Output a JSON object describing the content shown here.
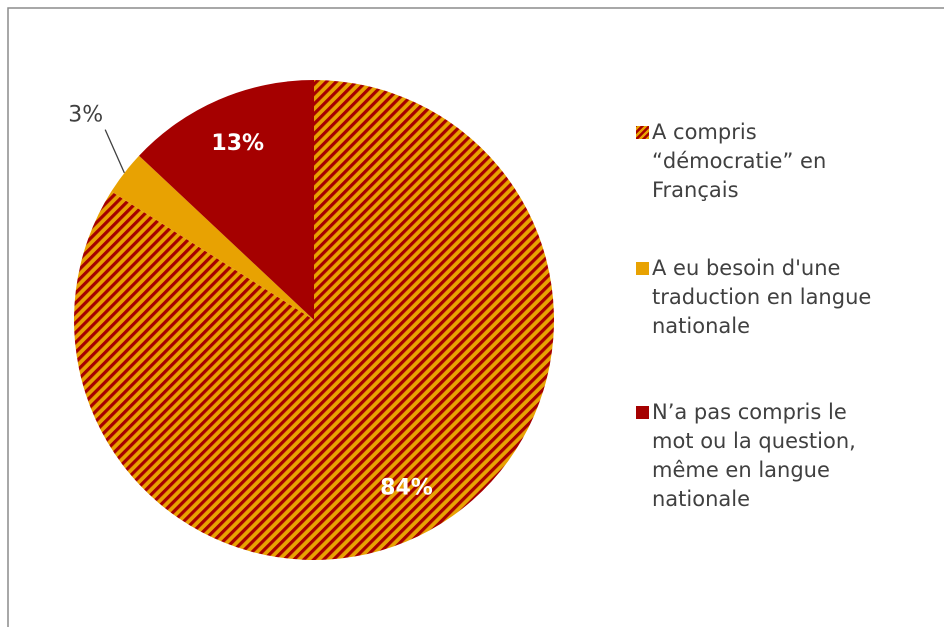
{
  "chart_data": {
    "type": "pie",
    "categories": [
      "A compris\n“démocratie” en\nFrançais",
      "A eu besoin d'une\ntraduction en langue\nnationale",
      "N’a pas compris le\nmot ou la question,\nmême en langue\nnationale"
    ],
    "values": [
      84,
      3,
      13
    ],
    "value_labels": [
      "84%",
      "3%",
      "13%"
    ],
    "colors": [
      "#e8a202",
      "#e8a202",
      "#a50000"
    ],
    "hatch": [
      "#a50000",
      null,
      null
    ],
    "legend": "right"
  }
}
